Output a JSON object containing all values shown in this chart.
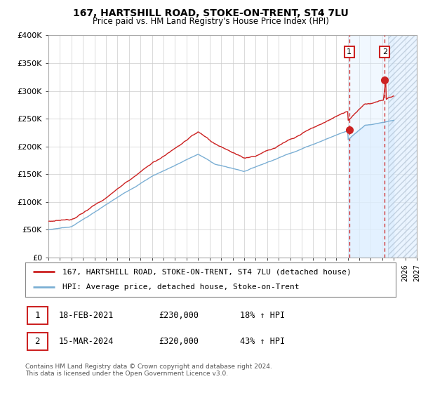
{
  "title": "167, HARTSHILL ROAD, STOKE-ON-TRENT, ST4 7LU",
  "subtitle": "Price paid vs. HM Land Registry's House Price Index (HPI)",
  "ylabel_ticks": [
    "£0",
    "£50K",
    "£100K",
    "£150K",
    "£200K",
    "£250K",
    "£300K",
    "£350K",
    "£400K"
  ],
  "ytick_values": [
    0,
    50000,
    100000,
    150000,
    200000,
    250000,
    300000,
    350000,
    400000
  ],
  "ylim": [
    0,
    400000
  ],
  "xlim_start": 1995,
  "xlim_end": 2027,
  "hpi_color": "#7bafd4",
  "price_color": "#cc2222",
  "marker1_year": 2021.13,
  "marker1_price": 230000,
  "marker2_year": 2024.21,
  "marker2_price": 320000,
  "legend1": "167, HARTSHILL ROAD, STOKE-ON-TRENT, ST4 7LU (detached house)",
  "legend2": "HPI: Average price, detached house, Stoke-on-Trent",
  "note1_num": "1",
  "note1_date": "18-FEB-2021",
  "note1_price": "£230,000",
  "note1_hpi": "18% ↑ HPI",
  "note2_num": "2",
  "note2_date": "15-MAR-2024",
  "note2_price": "£320,000",
  "note2_hpi": "43% ↑ HPI",
  "footer": "Contains HM Land Registry data © Crown copyright and database right 2024.\nThis data is licensed under the Open Government Licence v3.0.",
  "background_color": "#ffffff",
  "grid_color": "#cccccc",
  "fill_color": "#ddeeff",
  "hatch_fill_color": "#e8eef5"
}
